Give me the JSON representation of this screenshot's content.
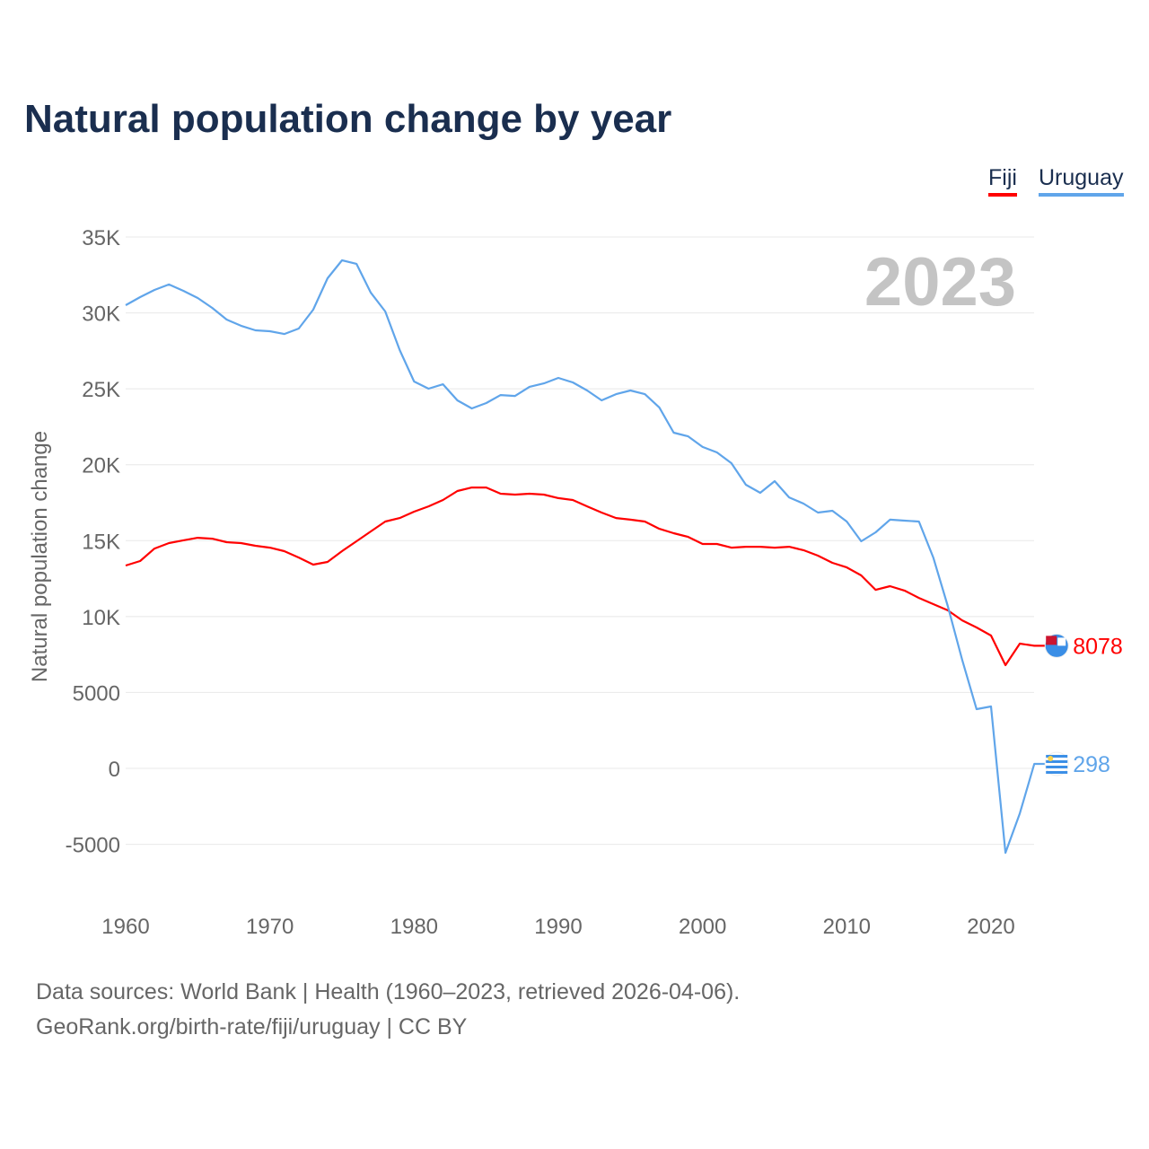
{
  "title": "Natural population change by year",
  "source_line1": "Data sources: World Bank | Health (1960–2023, retrieved 2026-04-06).",
  "source_line2": "GeoRank.org/birth-rate/fiji/uruguay | CC BY",
  "chart_data": {
    "type": "line",
    "title": "Natural population change by year",
    "xlabel": "",
    "ylabel": "Natural population change",
    "year_label": "2023",
    "xlim": [
      1960,
      2023
    ],
    "ylim": [
      -5000,
      35000
    ],
    "yticks": [
      -5000,
      0,
      5000,
      10000,
      15000,
      20000,
      25000,
      30000,
      35000
    ],
    "ytick_labels": [
      "-5000",
      "0",
      "5000",
      "10K",
      "15K",
      "20K",
      "25K",
      "30K",
      "35K"
    ],
    "xticks": [
      1960,
      1970,
      1980,
      1990,
      2000,
      2010,
      2020
    ],
    "xtick_labels": [
      "1960",
      "1970",
      "1980",
      "1990",
      "2000",
      "2010",
      "2020"
    ],
    "legend": "top-right",
    "x_start": 1960,
    "series": [
      {
        "name": "Fiji",
        "color": "#ff0000",
        "end_label": "8078",
        "values": [
          13360,
          13660,
          14480,
          14840,
          15020,
          15190,
          15130,
          14900,
          14840,
          14660,
          14540,
          14310,
          13890,
          13420,
          13600,
          14310,
          14960,
          15610,
          16260,
          16490,
          16910,
          17260,
          17680,
          18270,
          18500,
          18500,
          18090,
          18030,
          18090,
          18030,
          17800,
          17680,
          17260,
          16850,
          16490,
          16380,
          16260,
          15780,
          15490,
          15250,
          14780,
          14780,
          14540,
          14600,
          14600,
          14540,
          14600,
          14370,
          14010,
          13540,
          13240,
          12710,
          11760,
          12000,
          11710,
          11230,
          10820,
          10410,
          9750,
          9280,
          8750,
          6800,
          8220,
          8078
        ]
      },
      {
        "name": "Uruguay",
        "color": "#60a5ea",
        "end_label": "298",
        "values": [
          30506,
          31040,
          31510,
          31870,
          31450,
          30980,
          30330,
          29560,
          29150,
          28850,
          28790,
          28610,
          28970,
          30210,
          32280,
          33460,
          33230,
          31330,
          30090,
          27550,
          25480,
          25010,
          25300,
          24240,
          23710,
          24060,
          24590,
          24530,
          25130,
          25360,
          25720,
          25420,
          24890,
          24240,
          24650,
          24890,
          24650,
          23770,
          22110,
          21870,
          21170,
          20810,
          20100,
          18680,
          18150,
          18920,
          17850,
          17440,
          16850,
          16970,
          16260,
          14960,
          15550,
          16380,
          16320,
          16260,
          13890,
          10700,
          7150,
          3900,
          4080,
          -5560,
          -2960,
          298
        ]
      }
    ]
  }
}
